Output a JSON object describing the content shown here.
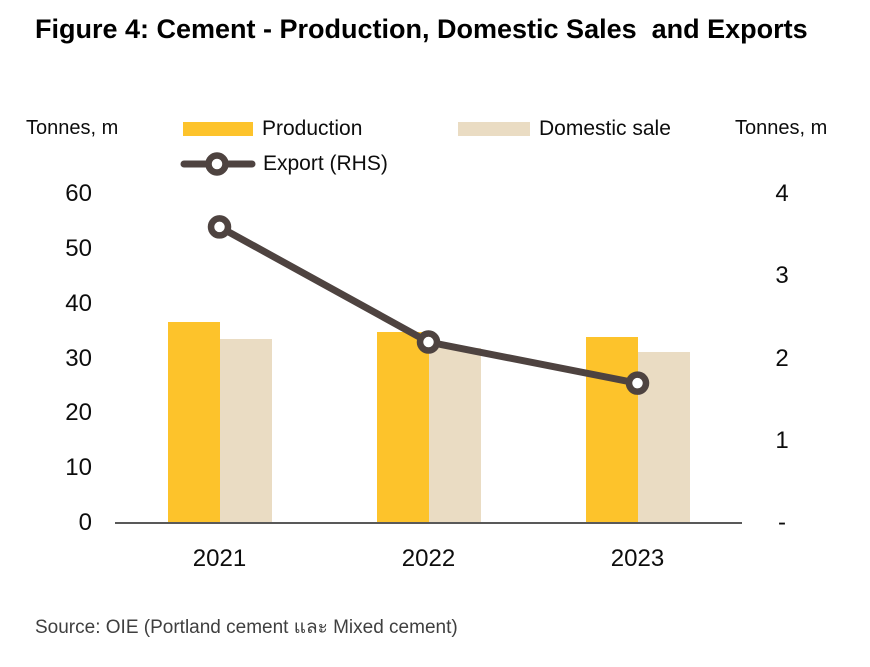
{
  "title": "Figure 4: Cement - Production, Domestic Sales  and Exports",
  "source": "Source: OIE (Portland cement และ Mixed cement)",
  "legend": {
    "production": "Production",
    "domestic_sale": "Domestic sale",
    "export": "Export (RHS)"
  },
  "colors": {
    "production": "#FDC32B",
    "domestic_sale": "#EADCC3",
    "export_line": "#4E4340",
    "axis_line": "#595959",
    "tick_text": "#0d0d0d",
    "source_text": "#3f3f3f"
  },
  "chart_data": {
    "type": "bar",
    "subtype": "combo-bar-line-dual-axis",
    "title": "Figure 4: Cement - Production, Domestic Sales  and Exports",
    "categories": [
      "2021",
      "2022",
      "2023"
    ],
    "series": [
      {
        "name": "Production",
        "type": "bar",
        "axis": "left",
        "color": "#FDC32B",
        "values": [
          36.6,
          34.8,
          33.9
        ]
      },
      {
        "name": "Domestic sale",
        "type": "bar",
        "axis": "left",
        "color": "#EADCC3",
        "values": [
          33.5,
          32.0,
          31.1
        ]
      },
      {
        "name": "Export (RHS)",
        "type": "line",
        "axis": "right",
        "color": "#4E4340",
        "values": [
          3.6,
          2.2,
          1.7
        ]
      }
    ],
    "left_axis": {
      "unit": "Tonnes, m",
      "range": [
        0,
        60
      ],
      "ticks": [
        60,
        50,
        40,
        30,
        20,
        10,
        0
      ]
    },
    "right_axis": {
      "unit": "Tonnes, m",
      "range": [
        0,
        4
      ],
      "tick_labels": [
        "4",
        "3",
        "2",
        "1",
        "-"
      ],
      "tick_values": [
        4,
        3,
        2,
        1,
        0
      ]
    },
    "legend_position": "top",
    "grid": false,
    "xlabel": "",
    "ylabel_left": "Tonnes, m",
    "ylabel_right": "Tonnes, m"
  }
}
